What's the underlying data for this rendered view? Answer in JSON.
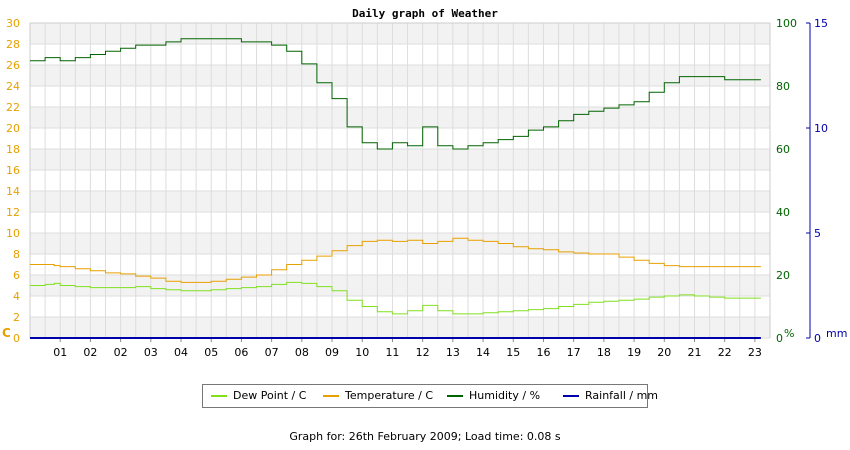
{
  "chart_data": {
    "type": "line",
    "title": "Daily graph of Weather",
    "x_tick_labels": [
      "01",
      "02",
      "02",
      "03",
      "04",
      "05",
      "06",
      "07",
      "08",
      "09",
      "10",
      "11",
      "12",
      "13",
      "14",
      "15",
      "16",
      "17",
      "18",
      "19",
      "20",
      "21",
      "22",
      "23"
    ],
    "xlim": [
      0,
      24.5
    ],
    "left_axis": {
      "unit_label": "C",
      "ylim": [
        0,
        30
      ],
      "tick_labels": [
        "0",
        "2",
        "4",
        "6",
        "8",
        "10",
        "12",
        "14",
        "16",
        "18",
        "20",
        "22",
        "24",
        "26",
        "28",
        "30"
      ],
      "color": "#e8a000"
    },
    "humidity_axis": {
      "unit_label": "%",
      "ylim": [
        0,
        100
      ],
      "tick_labels": [
        "0",
        "20",
        "40",
        "60",
        "80",
        "100"
      ],
      "color": "#006400"
    },
    "rainfall_axis": {
      "unit_label": "mm",
      "ylim": [
        0,
        15
      ],
      "tick_labels": [
        "0",
        "5",
        "10",
        "15"
      ],
      "color": "#0000aa"
    },
    "series": [
      {
        "name": "Dew Point / C",
        "axis": "left",
        "color": "#80e020",
        "x": [
          0,
          0.5,
          0.8,
          1.0,
          1.5,
          2,
          2.5,
          3,
          3.5,
          4,
          4.5,
          5,
          5.5,
          6,
          6.5,
          7,
          7.5,
          8,
          8.5,
          9,
          9.5,
          10,
          10.5,
          11,
          11.5,
          12,
          12.5,
          13,
          13.5,
          14,
          14.5,
          15,
          15.5,
          16,
          16.5,
          17,
          17.5,
          18,
          18.5,
          19,
          19.5,
          20,
          20.5,
          21,
          21.5,
          22,
          22.5,
          23,
          23.5
        ],
        "values": [
          5.0,
          5.1,
          5.2,
          5.0,
          4.9,
          4.8,
          4.8,
          4.8,
          4.9,
          4.7,
          4.6,
          4.5,
          4.5,
          4.6,
          4.7,
          4.8,
          4.9,
          5.1,
          5.3,
          5.2,
          4.9,
          4.5,
          3.6,
          3.0,
          2.5,
          2.3,
          2.6,
          3.1,
          2.6,
          2.3,
          2.3,
          2.4,
          2.5,
          2.6,
          2.7,
          2.8,
          3.0,
          3.2,
          3.4,
          3.5,
          3.6,
          3.7,
          3.9,
          4.0,
          4.1,
          4.0,
          3.9,
          3.8,
          3.8
        ]
      },
      {
        "name": "Temperature / C",
        "axis": "left",
        "color": "#e8a000",
        "x": [
          0,
          0.5,
          0.8,
          1.0,
          1.5,
          2,
          2.5,
          3,
          3.5,
          4,
          4.5,
          5,
          5.5,
          6,
          6.5,
          7,
          7.5,
          8,
          8.5,
          9,
          9.5,
          10,
          10.5,
          11,
          11.5,
          12,
          12.5,
          13,
          13.5,
          14,
          14.5,
          15,
          15.5,
          16,
          16.5,
          17,
          17.5,
          18,
          18.5,
          19,
          19.5,
          20,
          20.5,
          21,
          21.5,
          22,
          22.5,
          23,
          23.5
        ],
        "values": [
          7.0,
          7.0,
          6.9,
          6.8,
          6.6,
          6.4,
          6.2,
          6.1,
          5.9,
          5.7,
          5.4,
          5.3,
          5.3,
          5.4,
          5.6,
          5.8,
          6.0,
          6.5,
          7.0,
          7.4,
          7.8,
          8.3,
          8.8,
          9.2,
          9.3,
          9.2,
          9.3,
          9.0,
          9.2,
          9.5,
          9.3,
          9.2,
          9.0,
          8.7,
          8.5,
          8.4,
          8.2,
          8.1,
          8.0,
          8.0,
          7.7,
          7.4,
          7.1,
          6.9,
          6.8,
          6.8,
          6.8,
          6.8,
          6.8
        ]
      },
      {
        "name": "Humidity / %",
        "axis": "humidity",
        "color": "#006400",
        "x": [
          0,
          0.5,
          1,
          1.5,
          2,
          2.5,
          3,
          3.5,
          4,
          4.5,
          5,
          5.5,
          6,
          6.5,
          7,
          7.5,
          8,
          8.5,
          9,
          9.5,
          10,
          10.5,
          11,
          11.5,
          12,
          12.5,
          13,
          13.5,
          14,
          14.5,
          15,
          15.5,
          16,
          16.5,
          17,
          17.5,
          18,
          18.5,
          19,
          19.5,
          20,
          20.5,
          21,
          21.5,
          22,
          22.5,
          23,
          23.5
        ],
        "values": [
          88,
          89,
          88,
          89,
          90,
          91,
          92,
          93,
          93,
          94,
          95,
          95,
          95,
          95,
          94,
          94,
          93,
          91,
          87,
          81,
          76,
          67,
          62,
          60,
          62,
          61,
          67,
          61,
          60,
          61,
          62,
          63,
          64,
          66,
          67,
          69,
          71,
          72,
          73,
          74,
          75,
          78,
          81,
          83,
          83,
          83,
          82,
          82
        ]
      },
      {
        "name": "Rainfall / mm",
        "axis": "rainfall",
        "color": "#0000aa",
        "x": [
          0,
          23.5
        ],
        "values": [
          0,
          0
        ]
      }
    ],
    "footer": "Graph for: 26th February 2009; Load time: 0.08 s",
    "grid": true,
    "legend_position": "bottom"
  }
}
